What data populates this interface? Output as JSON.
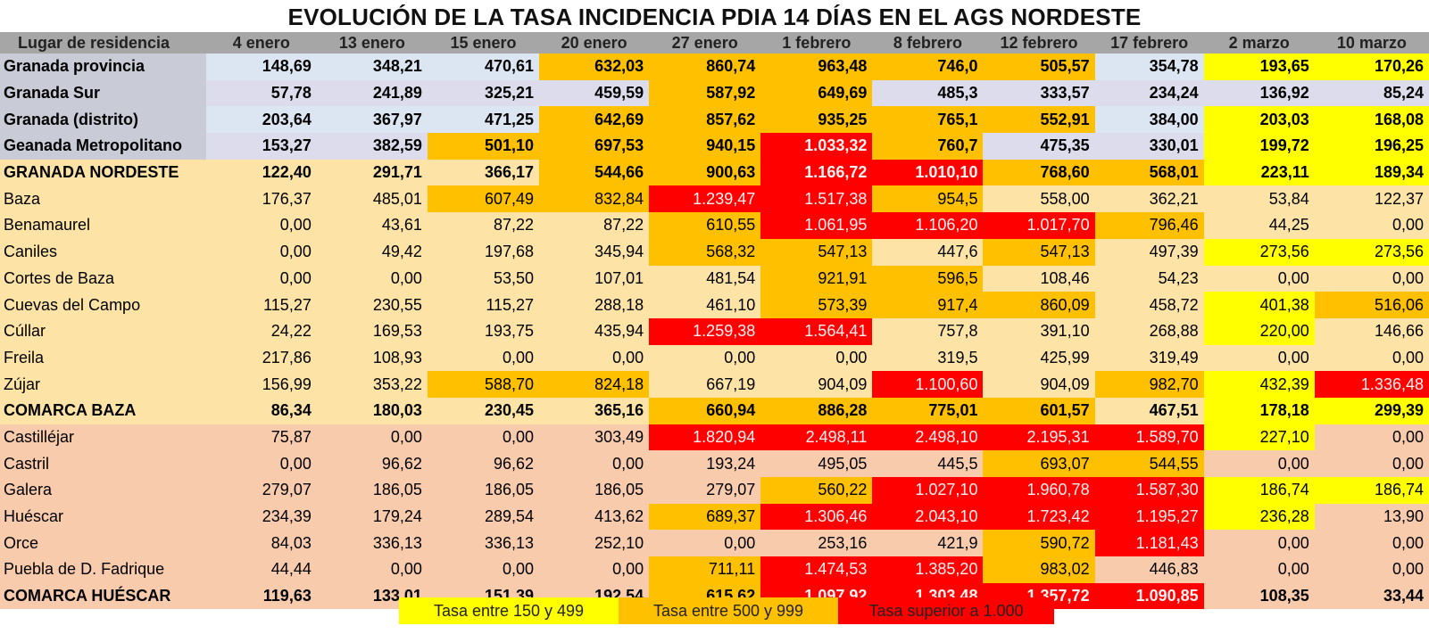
{
  "title": "EVOLUCIÓN DE LA TASA INCIDENCIA PDIA 14 DÍAS EN EL AGS NORDESTE",
  "colors": {
    "header_bg": "#a6a6a6",
    "group_regional_a": "#dce6f2",
    "group_regional_b": "#dcdcec",
    "group_regional_name": "#c9ccd6",
    "group_baza": "#fde4a6",
    "group_huescar": "#f8cbad",
    "rate_150_499": "#ffff00",
    "rate_500_999": "#ffc000",
    "rate_over_1000": "#ff0000"
  },
  "legend": [
    {
      "label": "Tasa entre 150 y 499",
      "color": "#ffff00"
    },
    {
      "label": "Tasa entre 500 y 999",
      "color": "#ffc000"
    },
    {
      "label": "Tasa superior a 1.000",
      "color": "#ff0000"
    }
  ],
  "chart_data": {
    "type": "table",
    "title": "EVOLUCIÓN DE LA TASA INCIDENCIA PDIA 14 DÍAS EN EL AGS NORDESTE",
    "row_header_label": "Lugar de residencia",
    "columns": [
      "4 enero",
      "13 enero",
      "15 enero",
      "20 enero",
      "27 enero",
      "1 febrero",
      "8 febrero",
      "12 febrero",
      "17 febrero",
      "2 marzo",
      "10 marzo"
    ],
    "rows": [
      {
        "name": "Granada provincia",
        "group": "regional",
        "bold": true,
        "values": [
          "148,69",
          "348,21",
          "470,61",
          "632,03",
          "860,74",
          "963,48",
          "746,0",
          "505,57",
          "354,78",
          "193,65",
          "170,26"
        ],
        "highlight": [
          "",
          "",
          "",
          "o",
          "o",
          "o",
          "o",
          "o",
          "",
          "y",
          "y"
        ]
      },
      {
        "name": "Granada Sur",
        "group": "regional",
        "bold": true,
        "values": [
          "57,78",
          "241,89",
          "325,21",
          "459,59",
          "587,92",
          "649,69",
          "485,3",
          "333,57",
          "234,24",
          "136,92",
          "85,24"
        ],
        "highlight": [
          "",
          "",
          "",
          "",
          "o",
          "o",
          "",
          "",
          "",
          "",
          ""
        ]
      },
      {
        "name": "Granada (distrito)",
        "group": "regional",
        "bold": true,
        "values": [
          "203,64",
          "367,97",
          "471,25",
          "642,69",
          "857,62",
          "935,25",
          "765,1",
          "552,91",
          "384,00",
          "203,03",
          "168,08"
        ],
        "highlight": [
          "",
          "",
          "",
          "o",
          "o",
          "o",
          "o",
          "o",
          "",
          "y",
          "y"
        ]
      },
      {
        "name": "Geanada Metropolitano",
        "group": "regional",
        "bold": true,
        "values": [
          "153,27",
          "382,59",
          "501,10",
          "697,53",
          "940,15",
          "1.033,32",
          "760,7",
          "475,35",
          "330,01",
          "199,72",
          "196,25"
        ],
        "highlight": [
          "",
          "",
          "o",
          "o",
          "o",
          "r",
          "o",
          "",
          "",
          "y",
          "y"
        ]
      },
      {
        "name": "GRANADA NORDESTE",
        "group": "baza",
        "bold": true,
        "values": [
          "122,40",
          "291,71",
          "366,17",
          "544,66",
          "900,63",
          "1.166,72",
          "1.010,10",
          "768,60",
          "568,01",
          "223,11",
          "189,34"
        ],
        "highlight": [
          "",
          "",
          "",
          "o",
          "o",
          "r",
          "r",
          "o",
          "o",
          "y",
          "y"
        ]
      },
      {
        "name": "Baza",
        "group": "baza",
        "bold": false,
        "values": [
          "176,37",
          "485,01",
          "607,49",
          "832,84",
          "1.239,47",
          "1.517,38",
          "954,5",
          "558,00",
          "362,21",
          "53,84",
          "122,37"
        ],
        "highlight": [
          "",
          "",
          "o",
          "o",
          "r",
          "r",
          "o",
          "",
          "",
          "",
          ""
        ]
      },
      {
        "name": "Benamaurel",
        "group": "baza",
        "bold": false,
        "values": [
          "0,00",
          "43,61",
          "87,22",
          "87,22",
          "610,55",
          "1.061,95",
          "1.106,20",
          "1.017,70",
          "796,46",
          "44,25",
          "0,00"
        ],
        "highlight": [
          "",
          "",
          "",
          "",
          "o",
          "r",
          "r",
          "r",
          "o",
          "",
          ""
        ]
      },
      {
        "name": "Caniles",
        "group": "baza",
        "bold": false,
        "values": [
          "0,00",
          "49,42",
          "197,68",
          "345,94",
          "568,32",
          "547,13",
          "447,6",
          "547,13",
          "497,39",
          "273,56",
          "273,56"
        ],
        "highlight": [
          "",
          "",
          "",
          "",
          "o",
          "o",
          "",
          "o",
          "",
          "y",
          "y"
        ]
      },
      {
        "name": "Cortes de Baza",
        "group": "baza",
        "bold": false,
        "values": [
          "0,00",
          "0,00",
          "53,50",
          "107,01",
          "481,54",
          "921,91",
          "596,5",
          "108,46",
          "54,23",
          "0,00",
          "0,00"
        ],
        "highlight": [
          "",
          "",
          "",
          "",
          "",
          "o",
          "o",
          "",
          "",
          "",
          ""
        ]
      },
      {
        "name": "Cuevas del Campo",
        "group": "baza",
        "bold": false,
        "values": [
          "115,27",
          "230,55",
          "115,27",
          "288,18",
          "461,10",
          "573,39",
          "917,4",
          "860,09",
          "458,72",
          "401,38",
          "516,06"
        ],
        "highlight": [
          "",
          "",
          "",
          "",
          "",
          "o",
          "o",
          "o",
          "",
          "y",
          "o"
        ]
      },
      {
        "name": "Cúllar",
        "group": "baza",
        "bold": false,
        "values": [
          "24,22",
          "169,53",
          "193,75",
          "435,94",
          "1.259,38",
          "1.564,41",
          "757,8",
          "391,10",
          "268,88",
          "220,00",
          "146,66"
        ],
        "highlight": [
          "",
          "",
          "",
          "",
          "r",
          "r",
          "",
          "",
          "",
          "y",
          ""
        ]
      },
      {
        "name": "Freila",
        "group": "baza",
        "bold": false,
        "values": [
          "217,86",
          "108,93",
          "0,00",
          "0,00",
          "0,00",
          "0,00",
          "319,5",
          "425,99",
          "319,49",
          "0,00",
          "0,00"
        ],
        "highlight": [
          "",
          "",
          "",
          "",
          "",
          "",
          "",
          "",
          "",
          "",
          ""
        ]
      },
      {
        "name": "Zújar",
        "group": "baza",
        "bold": false,
        "values": [
          "156,99",
          "353,22",
          "588,70",
          "824,18",
          "667,19",
          "904,09",
          "1.100,60",
          "904,09",
          "982,70",
          "432,39",
          "1.336,48"
        ],
        "highlight": [
          "",
          "",
          "o",
          "o",
          "",
          "",
          "r",
          "",
          "o",
          "y",
          "r"
        ]
      },
      {
        "name": "COMARCA BAZA",
        "group": "baza",
        "bold": true,
        "values": [
          "86,34",
          "180,03",
          "230,45",
          "365,16",
          "660,94",
          "886,28",
          "775,01",
          "601,57",
          "467,51",
          "178,18",
          "299,39"
        ],
        "highlight": [
          "",
          "",
          "",
          "",
          "o",
          "o",
          "o",
          "o",
          "",
          "y",
          "y"
        ]
      },
      {
        "name": "Castilléjar",
        "group": "huescar",
        "bold": false,
        "values": [
          "75,87",
          "0,00",
          "0,00",
          "303,49",
          "1.820,94",
          "2.498,11",
          "2.498,10",
          "2.195,31",
          "1.589,70",
          "227,10",
          "0,00"
        ],
        "highlight": [
          "",
          "",
          "",
          "",
          "r",
          "r",
          "r",
          "r",
          "r",
          "y",
          ""
        ]
      },
      {
        "name": "Castril",
        "group": "huescar",
        "bold": false,
        "values": [
          "0,00",
          "96,62",
          "96,62",
          "0,00",
          "193,24",
          "495,05",
          "445,5",
          "693,07",
          "544,55",
          "0,00",
          "0,00"
        ],
        "highlight": [
          "",
          "",
          "",
          "",
          "",
          "",
          "",
          "o",
          "o",
          "",
          ""
        ]
      },
      {
        "name": "Galera",
        "group": "huescar",
        "bold": false,
        "values": [
          "279,07",
          "186,05",
          "186,05",
          "186,05",
          "279,07",
          "560,22",
          "1.027,10",
          "1.960,78",
          "1.587,30",
          "186,74",
          "186,74"
        ],
        "highlight": [
          "",
          "",
          "",
          "",
          "",
          "o",
          "r",
          "r",
          "r",
          "y",
          "y"
        ]
      },
      {
        "name": "Huéscar",
        "group": "huescar",
        "bold": false,
        "values": [
          "234,39",
          "179,24",
          "289,54",
          "413,62",
          "689,37",
          "1.306,46",
          "2.043,10",
          "1.723,42",
          "1.195,27",
          "236,28",
          "13,90"
        ],
        "highlight": [
          "",
          "",
          "",
          "",
          "o",
          "r",
          "r",
          "r",
          "r",
          "y",
          ""
        ]
      },
      {
        "name": "Orce",
        "group": "huescar",
        "bold": false,
        "values": [
          "84,03",
          "336,13",
          "336,13",
          "252,10",
          "0,00",
          "253,16",
          "421,9",
          "590,72",
          "1.181,43",
          "0,00",
          "0,00"
        ],
        "highlight": [
          "",
          "",
          "",
          "",
          "",
          "",
          "",
          "o",
          "r",
          "",
          ""
        ]
      },
      {
        "name": "Puebla de D. Fadrique",
        "group": "huescar",
        "bold": false,
        "values": [
          "44,44",
          "0,00",
          "0,00",
          "0,00",
          "711,11",
          "1.474,53",
          "1.385,20",
          "983,02",
          "446,83",
          "0,00",
          "0,00"
        ],
        "highlight": [
          "",
          "",
          "",
          "",
          "o",
          "r",
          "r",
          "o",
          "",
          "",
          ""
        ]
      },
      {
        "name": "COMARCA HUÉSCAR",
        "group": "huescar",
        "bold": true,
        "values": [
          "119,63",
          "133,01",
          "151,39",
          "192,54",
          "615,62",
          "1.097,92",
          "1.303,48",
          "1.357,72",
          "1.090,85",
          "108,35",
          "33,44"
        ],
        "highlight": [
          "",
          "",
          "",
          "",
          "o",
          "r",
          "r",
          "r",
          "r",
          "",
          ""
        ]
      }
    ]
  }
}
